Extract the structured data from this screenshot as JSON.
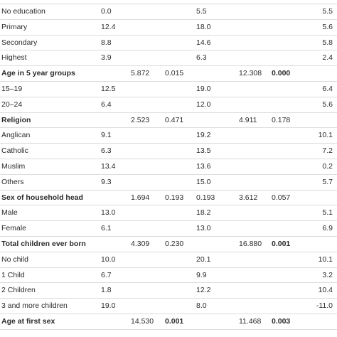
{
  "table": {
    "rows": [
      {
        "label": "No education",
        "values": [
          "0.0",
          null,
          null,
          "5.5",
          null,
          null,
          "5.5"
        ]
      },
      {
        "label": "Primary",
        "values": [
          "12.4",
          null,
          null,
          "18.0",
          null,
          null,
          "5.6"
        ]
      },
      {
        "label": "Secondary",
        "values": [
          "8.8",
          null,
          null,
          "14.6",
          null,
          null,
          "5.8"
        ]
      },
      {
        "label": "Highest",
        "values": [
          "3.9",
          null,
          null,
          "6.3",
          null,
          null,
          "2.4"
        ]
      },
      {
        "label": "Age in 5 year groups",
        "group": true,
        "values": [
          null,
          "5.872",
          "0.015",
          null,
          "12.308",
          "0.000",
          null
        ],
        "bold_cols": [
          5
        ]
      },
      {
        "label": "15–19",
        "values": [
          "12.5",
          null,
          null,
          "19.0",
          null,
          null,
          "6.4"
        ]
      },
      {
        "label": "20–24",
        "values": [
          "6.4",
          null,
          null,
          "12.0",
          null,
          null,
          "5.6"
        ]
      },
      {
        "label": "Religion",
        "group": true,
        "values": [
          null,
          "2.523",
          "0.471",
          null,
          "4.911",
          "0.178",
          null
        ]
      },
      {
        "label": "Anglican",
        "values": [
          "9.1",
          null,
          null,
          "19.2",
          null,
          null,
          "10.1"
        ]
      },
      {
        "label": "Catholic",
        "values": [
          "6.3",
          null,
          null,
          "13.5",
          null,
          null,
          "7.2"
        ]
      },
      {
        "label": "Muslim",
        "values": [
          "13.4",
          null,
          null,
          "13.6",
          null,
          null,
          "0.2"
        ]
      },
      {
        "label": "Others",
        "values": [
          "9.3",
          null,
          null,
          "15.0",
          null,
          null,
          "5.7"
        ]
      },
      {
        "label": "Sex of household head",
        "group": true,
        "values": [
          null,
          "1.694",
          "0.193",
          "0.193",
          "3.612",
          "0.057",
          null
        ]
      },
      {
        "label": "Male",
        "values": [
          "13.0",
          null,
          null,
          "18.2",
          null,
          null,
          "5.1"
        ]
      },
      {
        "label": "Female",
        "values": [
          "6.1",
          null,
          null,
          "13.0",
          null,
          null,
          "6.9"
        ]
      },
      {
        "label": "Total children ever born",
        "group": true,
        "values": [
          null,
          "4.309",
          "0.230",
          null,
          "16.880",
          "0.001",
          null
        ],
        "bold_cols": [
          5
        ]
      },
      {
        "label": "No child",
        "values": [
          "10.0",
          null,
          null,
          "20.1",
          null,
          null,
          "10.1"
        ]
      },
      {
        "label": "1 Child",
        "values": [
          "6.7",
          null,
          null,
          "9.9",
          null,
          null,
          "3.2"
        ]
      },
      {
        "label": "2 Children",
        "values": [
          "1.8",
          null,
          null,
          "12.2",
          null,
          null,
          "10.4"
        ]
      },
      {
        "label": "3 and more children",
        "values": [
          "19.0",
          null,
          null,
          "8.0",
          null,
          null,
          "-11.0"
        ]
      },
      {
        "label": "Age at first sex",
        "group": true,
        "values": [
          null,
          "14.530",
          "0.001",
          null,
          "11.468",
          "0.003",
          null
        ],
        "bold_cols": [
          2,
          5
        ]
      }
    ]
  }
}
